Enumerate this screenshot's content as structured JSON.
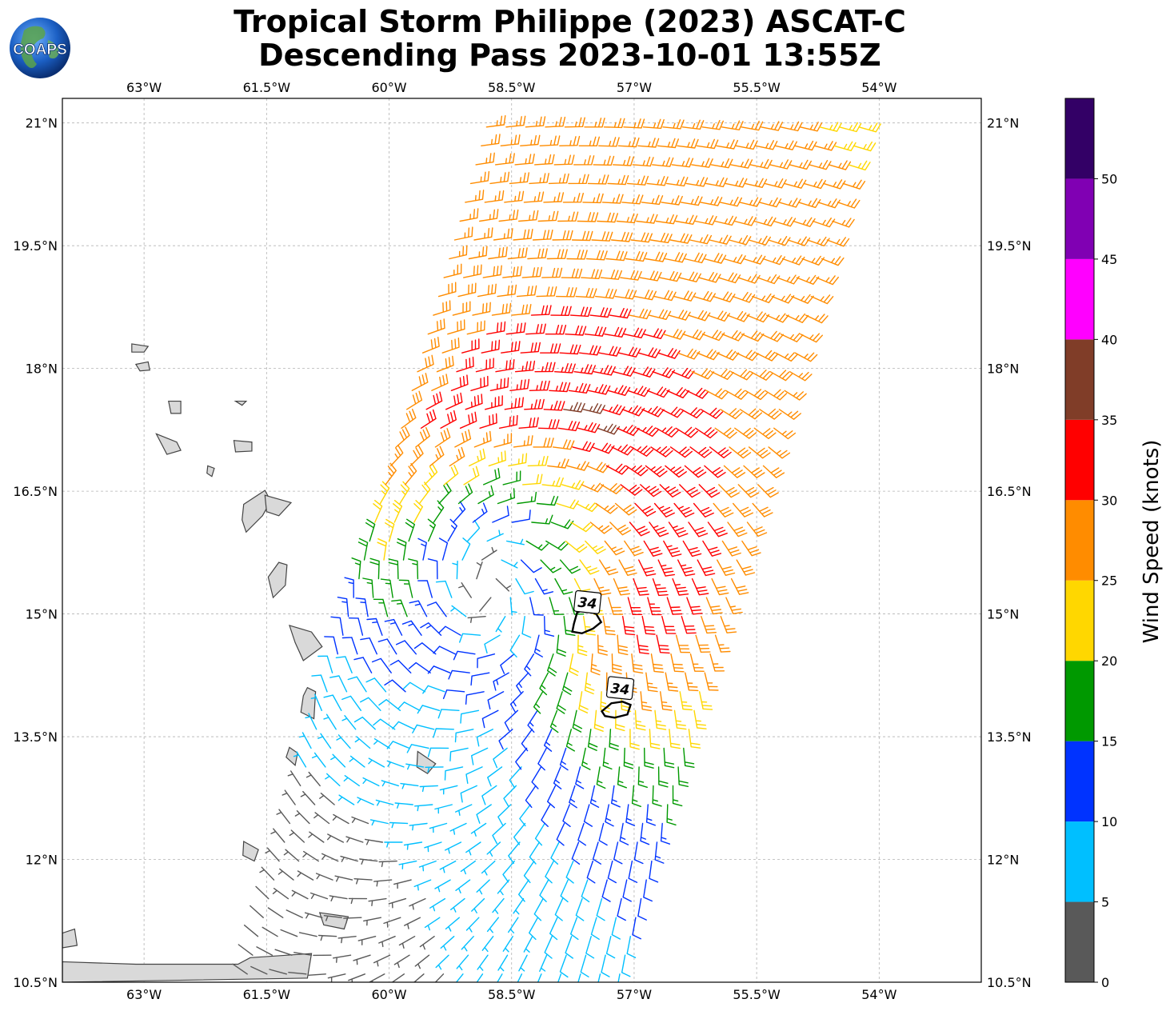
{
  "title": {
    "line1": "Tropical Storm Philippe (2023) ASCAT-C",
    "line2": "Descending Pass 2023-10-01 13:55Z"
  },
  "logo": {
    "text": "COAPS",
    "icon": "globe-logo-icon"
  },
  "chart_data": {
    "type": "wind-barb-map",
    "projection": "plate-carree",
    "xlim": [
      -64.0,
      -52.75
    ],
    "ylim": [
      10.5,
      21.3
    ],
    "x_ticks": [
      {
        "value": -63.0,
        "label": "63°W"
      },
      {
        "value": -61.5,
        "label": "61.5°W"
      },
      {
        "value": -60.0,
        "label": "60°W"
      },
      {
        "value": -58.5,
        "label": "58.5°W"
      },
      {
        "value": -57.0,
        "label": "57°W"
      },
      {
        "value": -55.5,
        "label": "55.5°W"
      },
      {
        "value": -54.0,
        "label": "54°W"
      }
    ],
    "y_ticks": [
      {
        "value": 21.0,
        "label": "21°N"
      },
      {
        "value": 19.5,
        "label": "19.5°N"
      },
      {
        "value": 18.0,
        "label": "18°N"
      },
      {
        "value": 16.5,
        "label": "16.5°N"
      },
      {
        "value": 15.0,
        "label": "15°N"
      },
      {
        "value": 13.5,
        "label": "13.5°N"
      },
      {
        "value": 12.0,
        "label": "12°N"
      },
      {
        "value": 10.5,
        "label": "10.5°N"
      }
    ],
    "grid": true,
    "storm_center": {
      "lon": -58.35,
      "lat": 15.95
    },
    "swath": {
      "top_edge": [
        [
          -58.8,
          21.15
        ],
        [
          -54.0,
          21.15
        ]
      ],
      "bottom_edge": [
        [
          -61.8,
          10.55
        ],
        [
          -57.0,
          10.55
        ]
      ]
    },
    "contours_34kt": [
      {
        "label": "34",
        "lon": -57.6,
        "lat": 14.9
      },
      {
        "label": "34",
        "lon": -57.2,
        "lat": 13.85
      }
    ],
    "colorbar": {
      "label": "Wind Speed (knots)",
      "range": [
        0,
        55
      ],
      "bins": [
        {
          "from": 0,
          "to": 5,
          "color": "#595959"
        },
        {
          "from": 5,
          "to": 10,
          "color": "#00bfff"
        },
        {
          "from": 10,
          "to": 15,
          "color": "#0033ff"
        },
        {
          "from": 15,
          "to": 20,
          "color": "#009900"
        },
        {
          "from": 20,
          "to": 25,
          "color": "#ffd700"
        },
        {
          "from": 25,
          "to": 30,
          "color": "#ff8c00"
        },
        {
          "from": 30,
          "to": 35,
          "color": "#ff0000"
        },
        {
          "from": 35,
          "to": 40,
          "color": "#803d28"
        },
        {
          "from": 40,
          "to": 45,
          "color": "#ff00ff"
        },
        {
          "from": 45,
          "to": 50,
          "color": "#8000b3"
        },
        {
          "from": 50,
          "to": 55,
          "color": "#330066"
        }
      ],
      "ticks": [
        0,
        5,
        10,
        15,
        20,
        25,
        30,
        35,
        40,
        45,
        50
      ]
    },
    "land_color": "#d9d9d9",
    "coast_color": "#444444"
  }
}
